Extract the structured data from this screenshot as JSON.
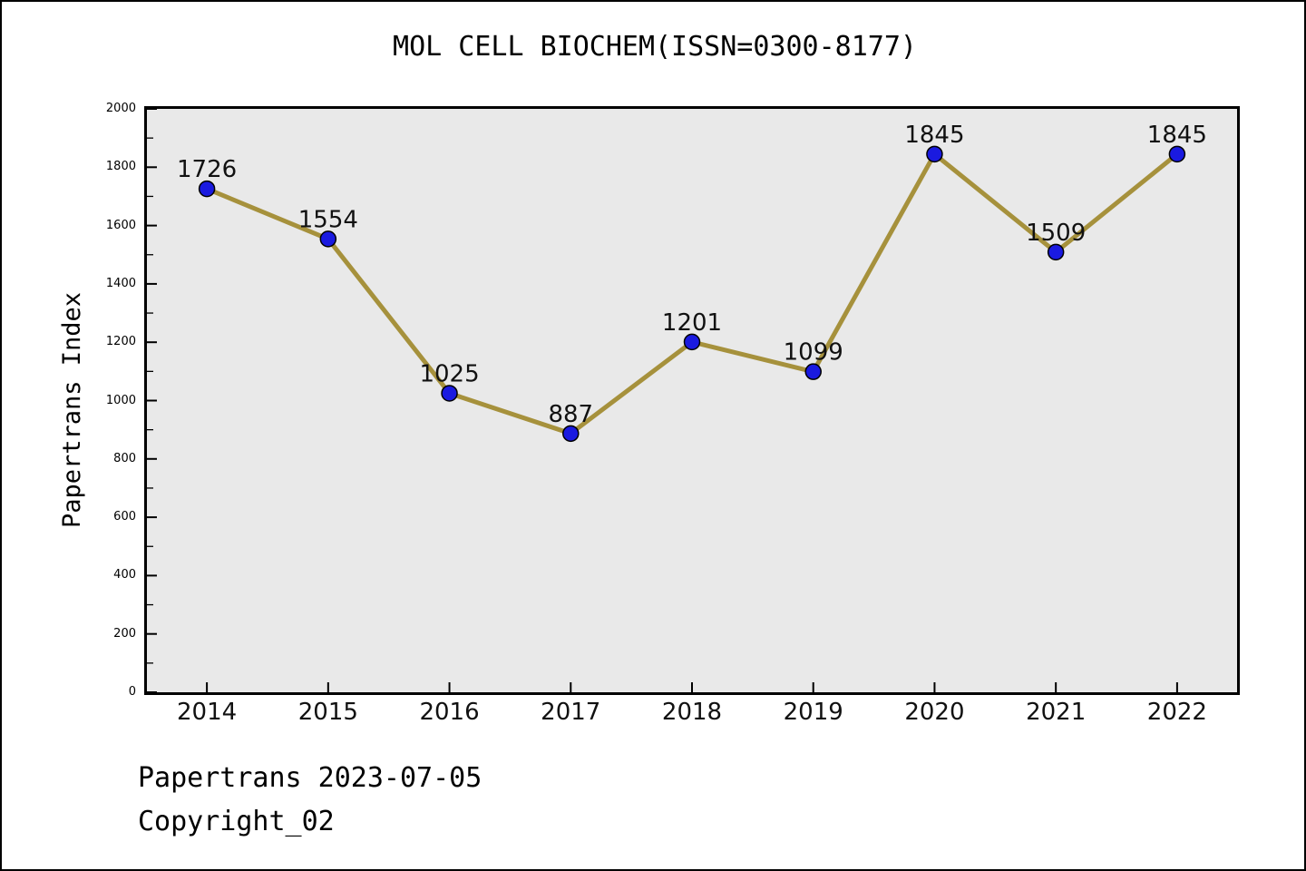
{
  "title": "MOL CELL BIOCHEM(ISSN=0300-8177)",
  "footer": {
    "line1": "Papertrans 2023-07-05",
    "line2": "Copyright_02"
  },
  "chart_data": {
    "type": "line",
    "title": "MOL CELL BIOCHEM(ISSN=0300-8177)",
    "x": [
      2014,
      2015,
      2016,
      2017,
      2018,
      2019,
      2020,
      2021,
      2022
    ],
    "series": [
      {
        "name": "Papertrans Index",
        "values": [
          1726,
          1554,
          1025,
          887,
          1201,
          1099,
          1845,
          1509,
          1845
        ]
      }
    ],
    "xlabel": "",
    "ylabel": "Papertrans Index",
    "ylim": [
      0,
      2000
    ],
    "ytick_major_step": 200,
    "ytick_minor_step": 100,
    "grid": false,
    "legend": false,
    "data_labels": true,
    "colors": {
      "line": "#A6913C",
      "marker_fill": "#1A1AE0",
      "marker_edge": "#000000",
      "plot_background": "#E9E9E9",
      "axis": "#000000",
      "text": "#111111"
    }
  }
}
